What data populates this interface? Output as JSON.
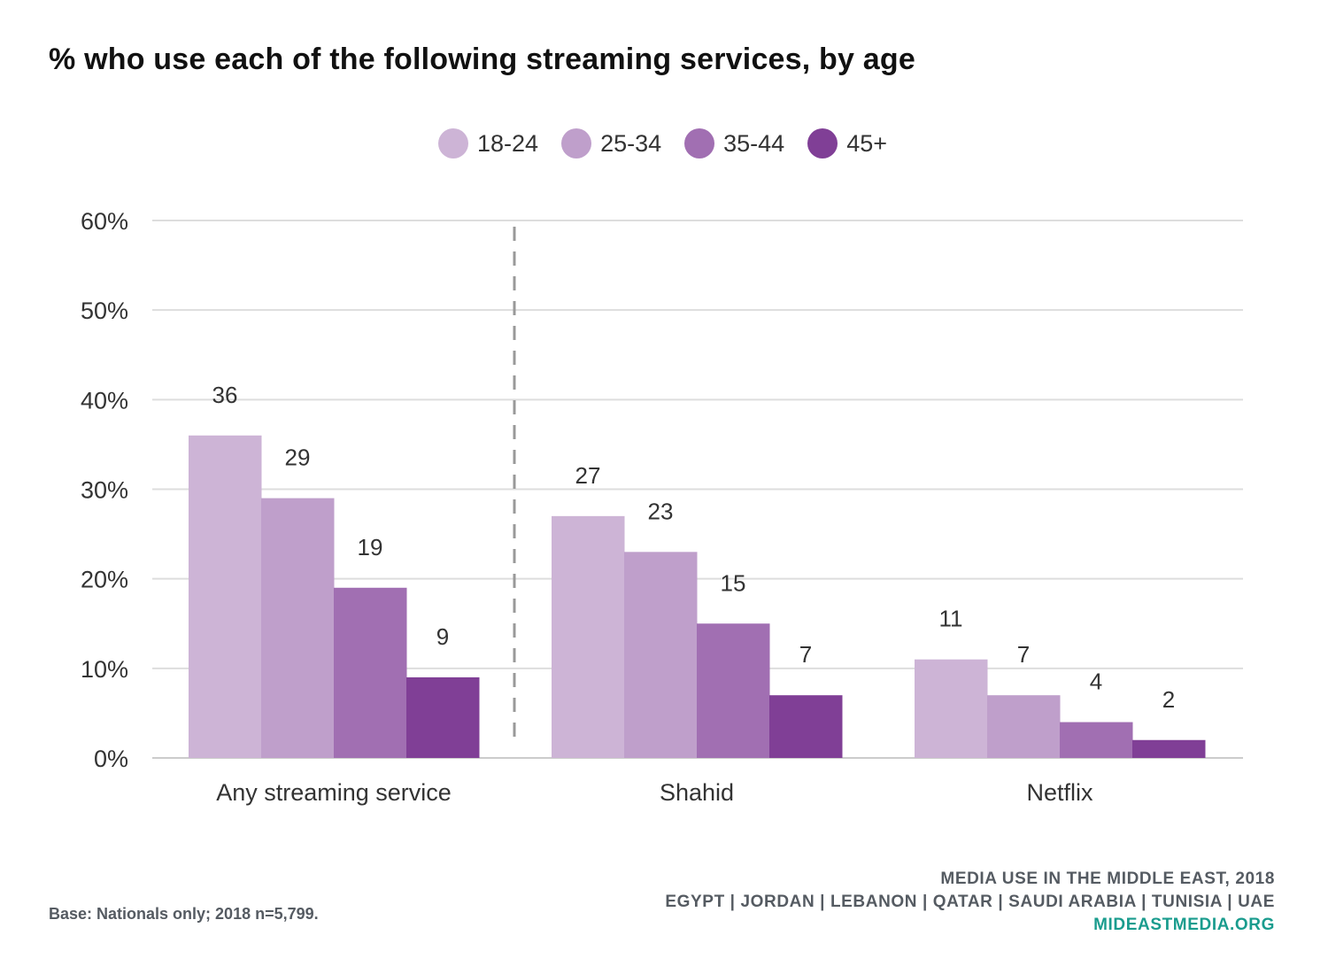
{
  "title": "% who use each of the following streaming services, by age",
  "legend": [
    {
      "label": "18-24",
      "color": "#cdb4d6"
    },
    {
      "label": "25-34",
      "color": "#bf9fcb"
    },
    {
      "label": "35-44",
      "color": "#a16fb2"
    },
    {
      "label": "45+",
      "color": "#803f96"
    }
  ],
  "chart_data": {
    "type": "bar",
    "title": "% who use each of the following streaming services, by age",
    "categories": [
      "Any streaming service",
      "Shahid",
      "Netflix"
    ],
    "series": [
      {
        "name": "18-24",
        "values": [
          36,
          27,
          11
        ],
        "color": "#cdb4d6"
      },
      {
        "name": "25-34",
        "values": [
          29,
          23,
          7
        ],
        "color": "#bf9fcb"
      },
      {
        "name": "35-44",
        "values": [
          19,
          15,
          4
        ],
        "color": "#a16fb2"
      },
      {
        "name": "45+",
        "values": [
          9,
          7,
          2
        ],
        "color": "#803f96"
      }
    ],
    "yticks": [
      "0%",
      "10%",
      "20%",
      "30%",
      "40%",
      "50%",
      "60%"
    ],
    "ylim": [
      0,
      60
    ],
    "grid": true,
    "legend_position": "top-center",
    "xlabel": "",
    "ylabel": ""
  },
  "footer": {
    "base": "Base: Nationals only; 2018 n=5,799.",
    "source_line1": "MEDIA USE IN THE MIDDLE EAST, 2018",
    "source_line2": "EGYPT | JORDAN | LEBANON | QATAR | SAUDI ARABIA | TUNISIA | UAE",
    "site": "MIDEASTMEDIA.ORG"
  }
}
